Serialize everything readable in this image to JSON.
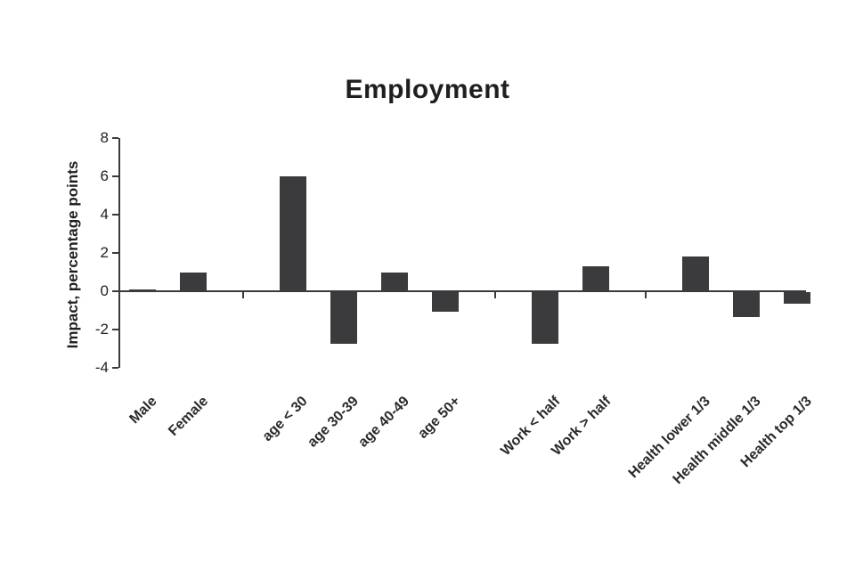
{
  "chart_data": {
    "type": "bar",
    "title": "Employment",
    "xlabel": "",
    "ylabel": "Impact, percentage points",
    "ylim": [
      -4,
      8
    ],
    "yticks": [
      8,
      6,
      4,
      2,
      0,
      -2,
      -4
    ],
    "grid": false,
    "legend_position": "none",
    "bar_color": "#3b3b3d",
    "groups": [
      {
        "name": "gender",
        "categories": [
          "Male",
          "Female"
        ],
        "values": [
          0.1,
          1.0
        ]
      },
      {
        "name": "age",
        "categories": [
          "age < 30",
          "age 30-39",
          "age 40-49",
          "age 50+"
        ],
        "values": [
          6.0,
          -2.7,
          1.0,
          -1.0
        ]
      },
      {
        "name": "work",
        "categories": [
          "Work < half",
          "Work > half"
        ],
        "values": [
          -2.7,
          1.3
        ]
      },
      {
        "name": "health",
        "categories": [
          "Health lower 1/3",
          "Health middle 1/3",
          "Health top 1/3"
        ],
        "values": [
          1.8,
          -1.3,
          -0.6
        ]
      }
    ]
  }
}
